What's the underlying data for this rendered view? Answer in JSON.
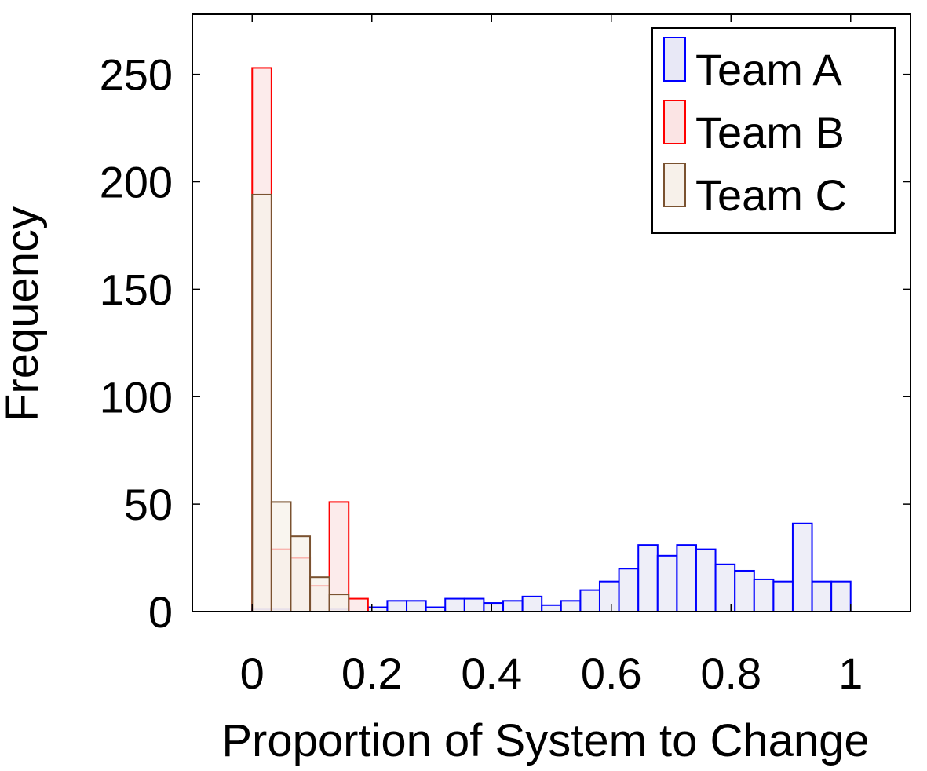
{
  "chart_data": {
    "type": "bar",
    "title": "",
    "xlabel": "Proportion of System to Change",
    "ylabel": "Frequency",
    "xlim": [
      -0.1,
      1.1
    ],
    "ylim": [
      0,
      278
    ],
    "bin_width": 0.03226,
    "x_ticks": [
      0,
      0.2,
      0.4,
      0.6,
      0.8,
      1
    ],
    "x_tick_labels": [
      "0",
      "0.2",
      "0.4",
      "0.6",
      "0.8",
      "1"
    ],
    "y_ticks": [
      0,
      50,
      100,
      150,
      200,
      250
    ],
    "y_tick_labels": [
      "0",
      "50",
      "100",
      "150",
      "200",
      "250"
    ],
    "legend_position": "top-right",
    "grid": false,
    "series": [
      {
        "name": "Team A",
        "stroke": "#0000ff",
        "fill": "#e8e8f6",
        "x": [
          0,
          0.0323,
          0.129,
          0.1935,
          0.2258,
          0.2581,
          0.2903,
          0.3226,
          0.3548,
          0.3871,
          0.4194,
          0.4516,
          0.4839,
          0.5161,
          0.5484,
          0.5806,
          0.6129,
          0.6452,
          0.6774,
          0.7097,
          0.7419,
          0.7742,
          0.8065,
          0.8387,
          0.871,
          0.9032,
          0.9355,
          0.9677
        ],
        "values": [
          1,
          1,
          1,
          2,
          5,
          5,
          2,
          6,
          6,
          4,
          5,
          7,
          3,
          5,
          10,
          14,
          20,
          31,
          26,
          31,
          29,
          22,
          19,
          15,
          14,
          41,
          14,
          14
        ]
      },
      {
        "name": "Team B",
        "stroke": "#ff0000",
        "fill": "#fbe4e4",
        "x": [
          0,
          0.0323,
          0.0645,
          0.0968,
          0.129,
          0.1613
        ],
        "values": [
          253,
          29,
          25,
          12,
          51,
          6
        ]
      },
      {
        "name": "Team C",
        "stroke": "#7a5230",
        "fill": "#f7f1ea",
        "x": [
          0,
          0.0323,
          0.0645,
          0.0968,
          0.129
        ],
        "values": [
          194,
          51,
          35,
          16,
          8
        ]
      }
    ]
  }
}
